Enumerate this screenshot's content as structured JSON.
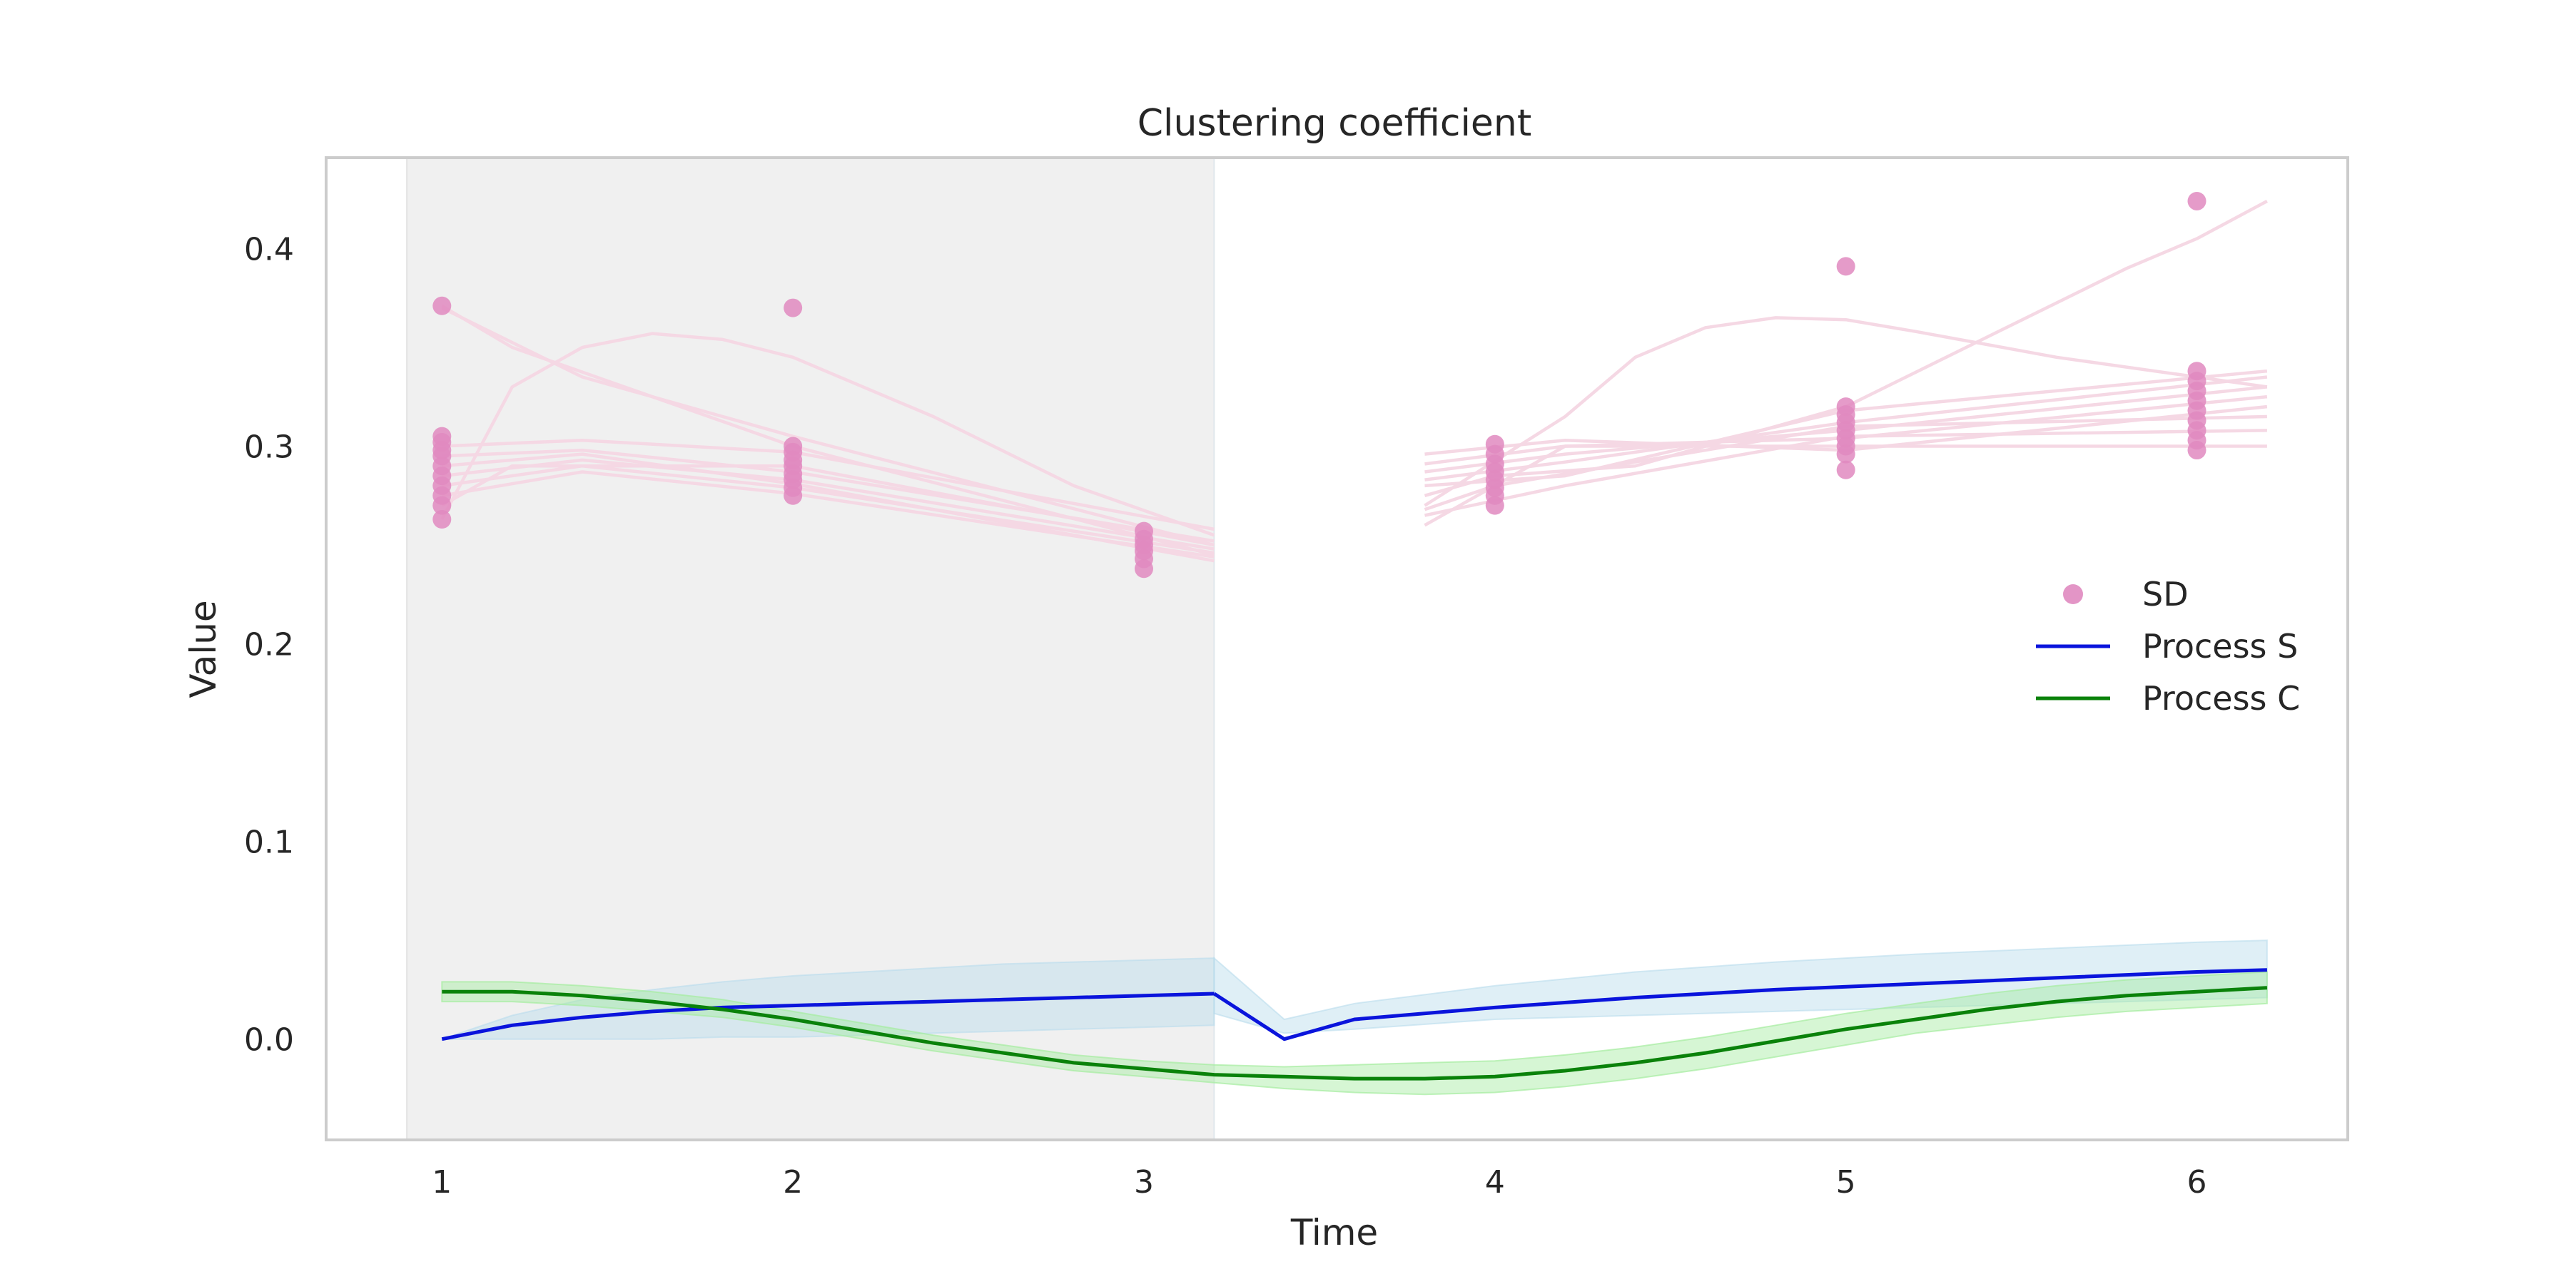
{
  "chart_data": {
    "type": "line",
    "title": "Clustering coefficient",
    "xlabel": "Time",
    "ylabel": "Value",
    "xlim": [
      0.67,
      6.43
    ],
    "ylim": [
      -0.051,
      0.446
    ],
    "xticks": [
      1,
      2,
      3,
      4,
      5,
      6
    ],
    "yticks": [
      0.0,
      0.1,
      0.2,
      0.3,
      0.4
    ],
    "ytick_labels": [
      "0.0",
      "0.1",
      "0.2",
      "0.3",
      "0.4"
    ],
    "grid": false,
    "legend_position": "right",
    "shaded_region": {
      "x_start": 0.9,
      "x_end": 3.2,
      "color": "#f0f0f0"
    },
    "colors": {
      "sd_points": "#e08ac0",
      "sd_trajectories": "#f5d8e4",
      "process_s": "#0a14dc",
      "process_s_band": "#b9dcec",
      "process_c": "#0a820a",
      "process_c_band": "#a5ec9f",
      "frame": "#cccccc"
    },
    "legend": [
      {
        "label": "SD",
        "kind": "marker",
        "color": "#e08ac0"
      },
      {
        "label": "Process S",
        "kind": "line",
        "color": "#0a14dc"
      },
      {
        "label": "Process C",
        "kind": "line",
        "color": "#0a820a"
      }
    ],
    "sd_points": [
      {
        "x": 1,
        "y": [
          0.371,
          0.305,
          0.302,
          0.298,
          0.295,
          0.29,
          0.285,
          0.28,
          0.275,
          0.27,
          0.263
        ]
      },
      {
        "x": 2,
        "y": [
          0.37,
          0.3,
          0.297,
          0.293,
          0.29,
          0.286,
          0.283,
          0.279,
          0.275
        ]
      },
      {
        "x": 3,
        "y": [
          0.257,
          0.253,
          0.25,
          0.247,
          0.243,
          0.238
        ]
      },
      {
        "x": 4,
        "y": [
          0.301,
          0.296,
          0.291,
          0.287,
          0.283,
          0.279,
          0.275,
          0.27
        ]
      },
      {
        "x": 5,
        "y": [
          0.391,
          0.32,
          0.316,
          0.312,
          0.308,
          0.304,
          0.3,
          0.296,
          0.288
        ]
      },
      {
        "x": 6,
        "y": [
          0.424,
          0.338,
          0.333,
          0.328,
          0.323,
          0.318,
          0.313,
          0.308,
          0.303,
          0.298
        ]
      }
    ],
    "sd_trajectories": [
      {
        "segment1": [
          [
            1,
            0.371
          ],
          [
            1.2,
            0.35
          ],
          [
            2,
            0.3
          ],
          [
            3.2,
            0.245
          ]
        ],
        "segment2": [
          [
            3.8,
            0.26
          ],
          [
            4.2,
            0.3
          ],
          [
            5,
            0.3
          ],
          [
            6.2,
            0.3
          ]
        ]
      },
      {
        "segment1": [
          [
            1,
            0.37
          ],
          [
            1.4,
            0.335
          ],
          [
            2,
            0.305
          ],
          [
            3.2,
            0.25
          ]
        ],
        "segment2": [
          [
            3.8,
            0.265
          ],
          [
            4.2,
            0.28
          ],
          [
            5,
            0.305
          ],
          [
            6.2,
            0.308
          ]
        ]
      },
      {
        "segment1": [
          [
            1,
            0.263
          ],
          [
            1.2,
            0.33
          ],
          [
            1.4,
            0.35
          ],
          [
            1.6,
            0.357
          ],
          [
            1.8,
            0.354
          ],
          [
            2,
            0.345
          ],
          [
            2.4,
            0.315
          ],
          [
            2.8,
            0.28
          ],
          [
            3.2,
            0.255
          ]
        ],
        "segment2": [
          [
            3.8,
            0.268
          ],
          [
            4,
            0.28
          ],
          [
            5,
            0.31
          ],
          [
            6.2,
            0.315
          ]
        ]
      },
      {
        "segment1": [
          [
            1,
            0.27
          ],
          [
            1.2,
            0.29
          ],
          [
            2,
            0.29
          ],
          [
            3.2,
            0.25
          ]
        ],
        "segment2": [
          [
            3.8,
            0.27
          ],
          [
            4.2,
            0.315
          ],
          [
            4.4,
            0.345
          ],
          [
            4.6,
            0.36
          ],
          [
            4.8,
            0.365
          ],
          [
            5,
            0.364
          ],
          [
            5.2,
            0.358
          ],
          [
            5.6,
            0.345
          ],
          [
            6,
            0.335
          ],
          [
            6.2,
            0.33
          ]
        ]
      },
      {
        "segment1": [
          [
            1,
            0.3
          ],
          [
            1.4,
            0.303
          ],
          [
            2,
            0.297
          ],
          [
            3.2,
            0.258
          ]
        ],
        "segment2": [
          [
            3.8,
            0.275
          ],
          [
            4,
            0.285
          ],
          [
            4.4,
            0.29
          ],
          [
            5,
            0.32
          ],
          [
            5.4,
            0.355
          ],
          [
            5.8,
            0.39
          ],
          [
            6,
            0.405
          ],
          [
            6.2,
            0.424
          ]
        ]
      },
      {
        "segment1": [
          [
            1,
            0.295
          ],
          [
            1.4,
            0.298
          ],
          [
            2,
            0.287
          ],
          [
            3.2,
            0.252
          ]
        ],
        "segment2": [
          [
            3.8,
            0.28
          ],
          [
            4.2,
            0.285
          ],
          [
            5,
            0.318
          ],
          [
            6.2,
            0.338
          ]
        ]
      },
      {
        "segment1": [
          [
            1,
            0.285
          ],
          [
            1.4,
            0.293
          ],
          [
            2,
            0.283
          ],
          [
            3.2,
            0.248
          ]
        ],
        "segment2": [
          [
            3.8,
            0.283
          ],
          [
            4.2,
            0.292
          ],
          [
            5,
            0.312
          ],
          [
            6.2,
            0.335
          ]
        ]
      },
      {
        "segment1": [
          [
            1,
            0.28
          ],
          [
            1.4,
            0.29
          ],
          [
            2,
            0.279
          ],
          [
            3.2,
            0.246
          ]
        ],
        "segment2": [
          [
            3.8,
            0.287
          ],
          [
            4.2,
            0.296
          ],
          [
            5,
            0.308
          ],
          [
            6.2,
            0.33
          ]
        ]
      },
      {
        "segment1": [
          [
            1,
            0.275
          ],
          [
            1.4,
            0.287
          ],
          [
            2,
            0.276
          ],
          [
            3.2,
            0.244
          ]
        ],
        "segment2": [
          [
            3.8,
            0.291
          ],
          [
            4.2,
            0.3
          ],
          [
            5,
            0.304
          ],
          [
            6.2,
            0.325
          ]
        ]
      },
      {
        "segment1": [
          [
            1,
            0.29
          ],
          [
            1.4,
            0.296
          ],
          [
            2,
            0.281
          ],
          [
            3.2,
            0.242
          ]
        ],
        "segment2": [
          [
            3.8,
            0.296
          ],
          [
            4.2,
            0.303
          ],
          [
            5,
            0.298
          ],
          [
            6.2,
            0.32
          ]
        ]
      }
    ],
    "series": [
      {
        "name": "Process S",
        "segment1": {
          "x": [
            1,
            1.2,
            1.4,
            1.6,
            1.8,
            2,
            2.2,
            2.4,
            2.6,
            2.8,
            3,
            3.2
          ],
          "y": [
            0.0,
            0.007,
            0.011,
            0.014,
            0.016,
            0.017,
            0.018,
            0.019,
            0.02,
            0.021,
            0.022,
            0.023
          ],
          "lower": [
            0.0,
            0.0,
            0.0,
            0.0,
            0.001,
            0.001,
            0.002,
            0.003,
            0.004,
            0.005,
            0.006,
            0.007
          ],
          "upper": [
            0.0,
            0.012,
            0.02,
            0.025,
            0.029,
            0.032,
            0.034,
            0.036,
            0.038,
            0.039,
            0.04,
            0.041
          ]
        },
        "segment2": {
          "x": [
            3.2,
            3.4,
            3.6,
            4,
            4.4,
            4.8,
            5.2,
            5.6,
            6,
            6.2
          ],
          "y": [
            0.023,
            0.0,
            0.01,
            0.016,
            0.021,
            0.025,
            0.028,
            0.031,
            0.034,
            0.035
          ],
          "lower": [
            0.013,
            0.003,
            0.005,
            0.01,
            0.012,
            0.014,
            0.016,
            0.018,
            0.02,
            0.021
          ],
          "upper": [
            0.041,
            0.01,
            0.018,
            0.027,
            0.034,
            0.039,
            0.043,
            0.046,
            0.049,
            0.05
          ]
        }
      },
      {
        "name": "Process C",
        "x": [
          1,
          1.2,
          1.4,
          1.6,
          1.8,
          2,
          2.2,
          2.4,
          2.6,
          2.8,
          3,
          3.2,
          3.4,
          3.6,
          3.8,
          4,
          4.2,
          4.4,
          4.6,
          4.8,
          5,
          5.2,
          5.4,
          5.6,
          5.8,
          6,
          6.2
        ],
        "y": [
          0.024,
          0.024,
          0.022,
          0.019,
          0.015,
          0.01,
          0.004,
          -0.002,
          -0.007,
          -0.012,
          -0.015,
          -0.018,
          -0.019,
          -0.02,
          -0.02,
          -0.019,
          -0.016,
          -0.012,
          -0.007,
          -0.001,
          0.005,
          0.01,
          0.015,
          0.019,
          0.022,
          0.024,
          0.026
        ],
        "lower": [
          0.019,
          0.019,
          0.017,
          0.014,
          0.011,
          0.006,
          0.0,
          -0.006,
          -0.011,
          -0.016,
          -0.019,
          -0.022,
          -0.025,
          -0.027,
          -0.028,
          -0.027,
          -0.024,
          -0.02,
          -0.015,
          -0.009,
          -0.003,
          0.003,
          0.007,
          0.011,
          0.014,
          0.016,
          0.018
        ],
        "upper": [
          0.029,
          0.029,
          0.027,
          0.024,
          0.02,
          0.014,
          0.008,
          0.002,
          -0.003,
          -0.008,
          -0.011,
          -0.013,
          -0.014,
          -0.013,
          -0.012,
          -0.011,
          -0.008,
          -0.004,
          0.001,
          0.007,
          0.013,
          0.018,
          0.023,
          0.027,
          0.03,
          0.032,
          0.034
        ]
      }
    ]
  }
}
